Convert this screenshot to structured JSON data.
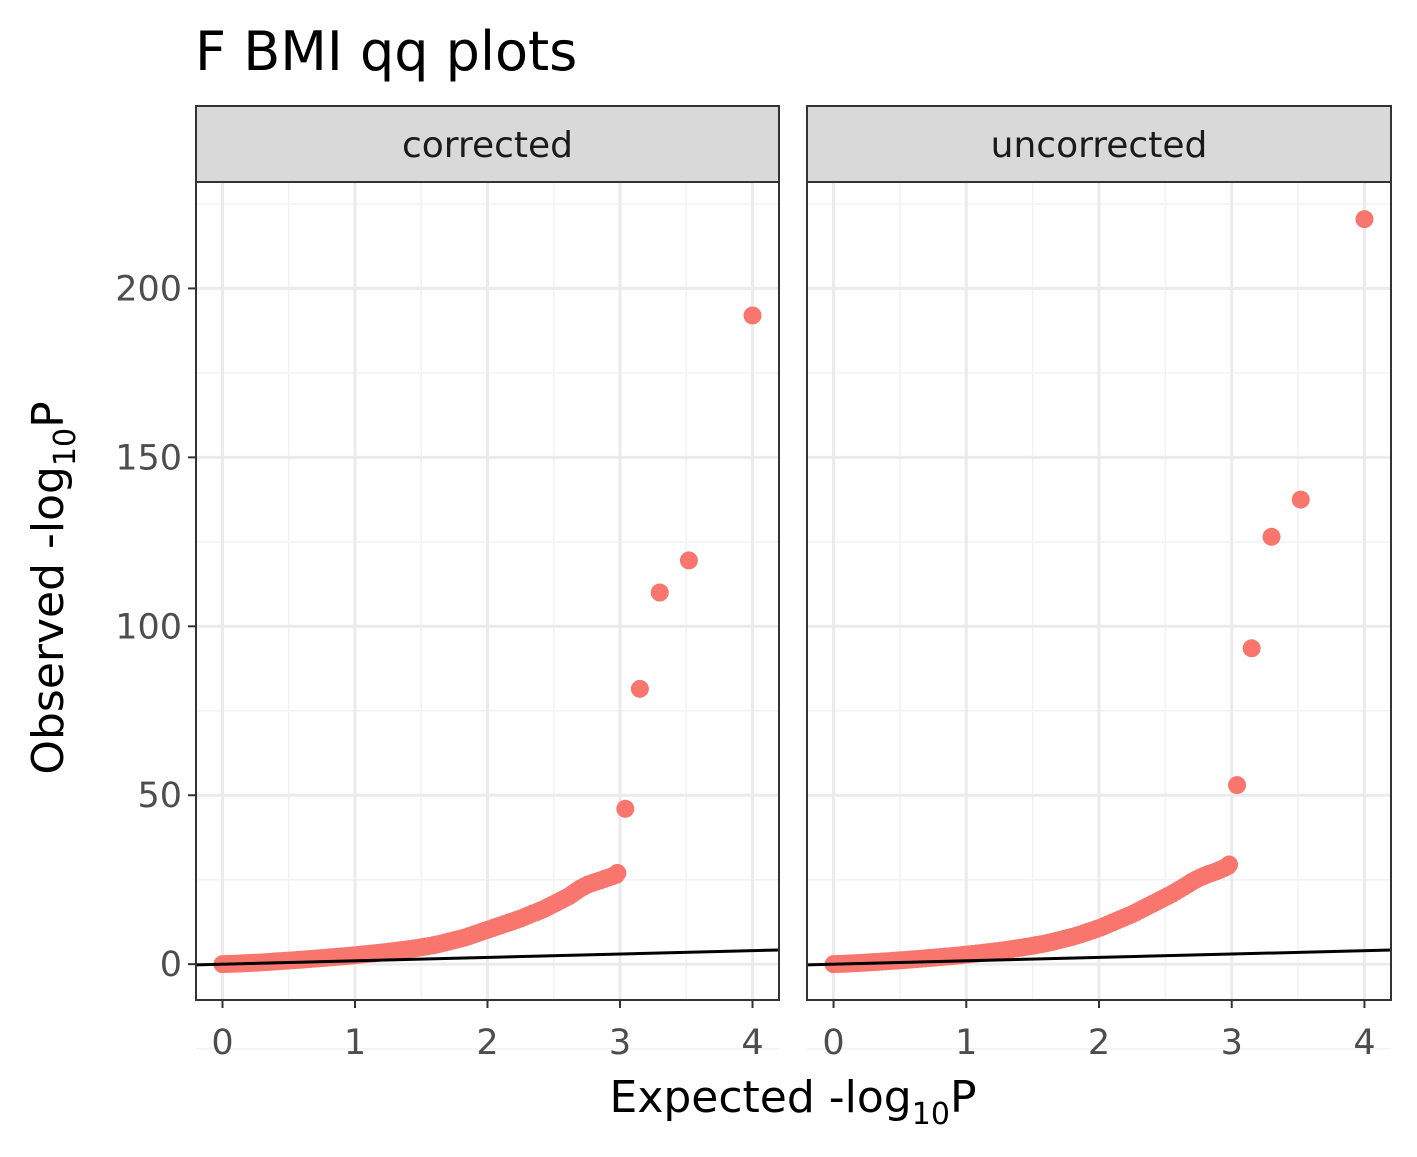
{
  "chart_data": {
    "type": "scatter",
    "title": "F BMI qq plots",
    "xlabel": {
      "main": "Expected -log",
      "sub": "10",
      "tail": "P"
    },
    "ylabel": {
      "main": "Observed -log",
      "sub": "10",
      "tail": "P"
    },
    "xlim": [
      -0.2,
      4.2
    ],
    "ylim": [
      -10.6,
      231.5
    ],
    "x_ticks": [
      0,
      1,
      2,
      3,
      4
    ],
    "y_ticks": [
      0,
      50,
      100,
      150,
      200
    ],
    "point_color": "#F8766D",
    "reference_line": {
      "slope": 1,
      "intercept": 0,
      "color": "#000000"
    },
    "grid": true,
    "panels": [
      {
        "name": "corrected",
        "points": [
          [
            0.0,
            0.0
          ],
          [
            0.03,
            0.05
          ],
          [
            0.06,
            0.1
          ],
          [
            0.09,
            0.14
          ],
          [
            0.12,
            0.18
          ],
          [
            0.15,
            0.24
          ],
          [
            0.18,
            0.3
          ],
          [
            0.21,
            0.36
          ],
          [
            0.24,
            0.42
          ],
          [
            0.27,
            0.48
          ],
          [
            0.3,
            0.55
          ],
          [
            0.33,
            0.62
          ],
          [
            0.36,
            0.7
          ],
          [
            0.39,
            0.78
          ],
          [
            0.42,
            0.86
          ],
          [
            0.45,
            0.94
          ],
          [
            0.48,
            1.02
          ],
          [
            0.51,
            1.1
          ],
          [
            0.54,
            1.18
          ],
          [
            0.57,
            1.26
          ],
          [
            0.6,
            1.35
          ],
          [
            0.63,
            1.44
          ],
          [
            0.66,
            1.53
          ],
          [
            0.69,
            1.62
          ],
          [
            0.72,
            1.71
          ],
          [
            0.75,
            1.8
          ],
          [
            0.78,
            1.9
          ],
          [
            0.81,
            2.0
          ],
          [
            0.84,
            2.1
          ],
          [
            0.87,
            2.2
          ],
          [
            0.9,
            2.3
          ],
          [
            0.93,
            2.4
          ],
          [
            0.96,
            2.5
          ],
          [
            0.99,
            2.6
          ],
          [
            1.02,
            2.72
          ],
          [
            1.05,
            2.84
          ],
          [
            1.08,
            2.96
          ],
          [
            1.11,
            3.08
          ],
          [
            1.14,
            3.2
          ],
          [
            1.17,
            3.32
          ],
          [
            1.2,
            3.45
          ],
          [
            1.23,
            3.58
          ],
          [
            1.26,
            3.72
          ],
          [
            1.29,
            3.86
          ],
          [
            1.32,
            4.0
          ],
          [
            1.35,
            4.15
          ],
          [
            1.38,
            4.3
          ],
          [
            1.41,
            4.46
          ],
          [
            1.44,
            4.62
          ],
          [
            1.47,
            4.8
          ],
          [
            1.5,
            5.0
          ],
          [
            1.53,
            5.2
          ],
          [
            1.56,
            5.4
          ],
          [
            1.59,
            5.6
          ],
          [
            1.62,
            5.85
          ],
          [
            1.65,
            6.1
          ],
          [
            1.68,
            6.4
          ],
          [
            1.71,
            6.7
          ],
          [
            1.74,
            7.0
          ],
          [
            1.77,
            7.3
          ],
          [
            1.8,
            7.6
          ],
          [
            1.83,
            7.9
          ],
          [
            1.86,
            8.3
          ],
          [
            1.89,
            8.7
          ],
          [
            1.92,
            9.1
          ],
          [
            1.95,
            9.5
          ],
          [
            1.98,
            9.9
          ],
          [
            2.01,
            10.3
          ],
          [
            2.04,
            10.7
          ],
          [
            2.07,
            11.1
          ],
          [
            2.1,
            11.5
          ],
          [
            2.13,
            11.9
          ],
          [
            2.16,
            12.3
          ],
          [
            2.19,
            12.7
          ],
          [
            2.22,
            13.1
          ],
          [
            2.25,
            13.5
          ],
          [
            2.28,
            14.0
          ],
          [
            2.31,
            14.5
          ],
          [
            2.34,
            15.0
          ],
          [
            2.37,
            15.4
          ],
          [
            2.4,
            15.9
          ],
          [
            2.43,
            16.4
          ],
          [
            2.46,
            17.0
          ],
          [
            2.49,
            17.6
          ],
          [
            2.52,
            18.2
          ],
          [
            2.55,
            18.8
          ],
          [
            2.58,
            19.4
          ],
          [
            2.61,
            20.0
          ],
          [
            2.64,
            20.8
          ],
          [
            2.67,
            21.6
          ],
          [
            2.7,
            22.4
          ],
          [
            2.73,
            23.0
          ],
          [
            2.76,
            23.6
          ],
          [
            2.79,
            24.0
          ],
          [
            2.82,
            24.4
          ],
          [
            2.85,
            24.8
          ],
          [
            2.88,
            25.2
          ],
          [
            2.91,
            25.6
          ],
          [
            2.94,
            26.0
          ],
          [
            2.97,
            26.4
          ],
          [
            2.98,
            27.0
          ],
          [
            3.04,
            46.0
          ],
          [
            3.15,
            81.5
          ],
          [
            3.3,
            110.0
          ],
          [
            3.52,
            119.5
          ],
          [
            4.0,
            192.0
          ]
        ]
      },
      {
        "name": "uncorrected",
        "points": [
          [
            0.0,
            0.0
          ],
          [
            0.03,
            0.05
          ],
          [
            0.06,
            0.1
          ],
          [
            0.09,
            0.15
          ],
          [
            0.12,
            0.2
          ],
          [
            0.15,
            0.26
          ],
          [
            0.18,
            0.32
          ],
          [
            0.21,
            0.38
          ],
          [
            0.24,
            0.45
          ],
          [
            0.27,
            0.52
          ],
          [
            0.3,
            0.6
          ],
          [
            0.33,
            0.68
          ],
          [
            0.36,
            0.76
          ],
          [
            0.39,
            0.84
          ],
          [
            0.42,
            0.92
          ],
          [
            0.45,
            1.0
          ],
          [
            0.48,
            1.08
          ],
          [
            0.51,
            1.16
          ],
          [
            0.54,
            1.25
          ],
          [
            0.57,
            1.34
          ],
          [
            0.6,
            1.43
          ],
          [
            0.63,
            1.52
          ],
          [
            0.66,
            1.62
          ],
          [
            0.69,
            1.72
          ],
          [
            0.72,
            1.82
          ],
          [
            0.75,
            1.92
          ],
          [
            0.78,
            2.02
          ],
          [
            0.81,
            2.12
          ],
          [
            0.84,
            2.22
          ],
          [
            0.87,
            2.33
          ],
          [
            0.9,
            2.44
          ],
          [
            0.93,
            2.55
          ],
          [
            0.96,
            2.66
          ],
          [
            0.99,
            2.78
          ],
          [
            1.02,
            2.9
          ],
          [
            1.05,
            3.02
          ],
          [
            1.08,
            3.15
          ],
          [
            1.11,
            3.28
          ],
          [
            1.14,
            3.42
          ],
          [
            1.17,
            3.56
          ],
          [
            1.2,
            3.7
          ],
          [
            1.23,
            3.85
          ],
          [
            1.26,
            4.0
          ],
          [
            1.29,
            4.16
          ],
          [
            1.32,
            4.32
          ],
          [
            1.35,
            4.5
          ],
          [
            1.38,
            4.68
          ],
          [
            1.41,
            4.86
          ],
          [
            1.44,
            5.05
          ],
          [
            1.47,
            5.25
          ],
          [
            1.5,
            5.45
          ],
          [
            1.53,
            5.66
          ],
          [
            1.56,
            5.88
          ],
          [
            1.59,
            6.1
          ],
          [
            1.62,
            6.35
          ],
          [
            1.65,
            6.6
          ],
          [
            1.68,
            6.9
          ],
          [
            1.71,
            7.2
          ],
          [
            1.74,
            7.5
          ],
          [
            1.77,
            7.8
          ],
          [
            1.8,
            8.1
          ],
          [
            1.83,
            8.45
          ],
          [
            1.86,
            8.8
          ],
          [
            1.89,
            9.2
          ],
          [
            1.92,
            9.6
          ],
          [
            1.95,
            10.0
          ],
          [
            1.98,
            10.4
          ],
          [
            2.01,
            10.8
          ],
          [
            2.04,
            11.3
          ],
          [
            2.07,
            11.8
          ],
          [
            2.1,
            12.3
          ],
          [
            2.13,
            12.8
          ],
          [
            2.16,
            13.3
          ],
          [
            2.19,
            13.8
          ],
          [
            2.22,
            14.3
          ],
          [
            2.25,
            14.8
          ],
          [
            2.28,
            15.4
          ],
          [
            2.31,
            16.0
          ],
          [
            2.34,
            16.6
          ],
          [
            2.37,
            17.2
          ],
          [
            2.4,
            17.8
          ],
          [
            2.43,
            18.4
          ],
          [
            2.46,
            19.0
          ],
          [
            2.49,
            19.6
          ],
          [
            2.52,
            20.2
          ],
          [
            2.55,
            20.8
          ],
          [
            2.58,
            21.5
          ],
          [
            2.61,
            22.2
          ],
          [
            2.64,
            22.9
          ],
          [
            2.67,
            23.6
          ],
          [
            2.7,
            24.4
          ],
          [
            2.73,
            25.0
          ],
          [
            2.76,
            25.6
          ],
          [
            2.79,
            26.1
          ],
          [
            2.82,
            26.6
          ],
          [
            2.85,
            27.0
          ],
          [
            2.88,
            27.4
          ],
          [
            2.91,
            27.9
          ],
          [
            2.94,
            28.4
          ],
          [
            2.97,
            29.0
          ],
          [
            2.98,
            29.5
          ],
          [
            3.04,
            53.0
          ],
          [
            3.15,
            93.5
          ],
          [
            3.3,
            126.5
          ],
          [
            3.52,
            137.5
          ],
          [
            4.0,
            220.5
          ]
        ]
      }
    ]
  }
}
